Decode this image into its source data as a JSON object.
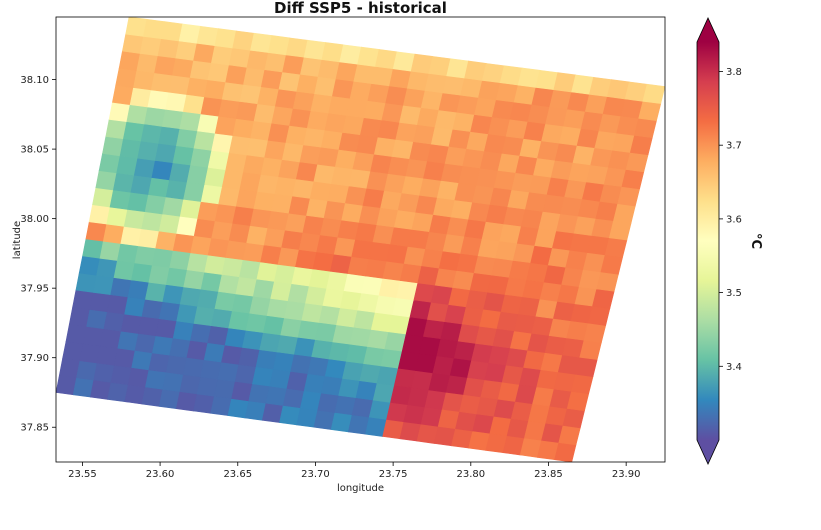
{
  "chart_data": {
    "type": "heatmap",
    "title": "Diff SSP5 - historical",
    "xlabel": "longitude",
    "ylabel": "latitude",
    "xlim": [
      23.533,
      23.925
    ],
    "ylim": [
      37.825,
      38.145
    ],
    "x_ticks": [
      "23.55",
      "23.60",
      "23.65",
      "23.70",
      "23.75",
      "23.80",
      "23.85",
      "23.90"
    ],
    "y_ticks": [
      "37.85",
      "37.90",
      "37.95",
      "38.00",
      "38.05",
      "38.10"
    ],
    "x_tick_values": [
      23.55,
      23.6,
      23.65,
      23.7,
      23.75,
      23.8,
      23.85,
      23.9
    ],
    "y_tick_values": [
      37.85,
      37.9,
      37.95,
      38.0,
      38.05,
      38.1
    ],
    "colorbar": {
      "label": "°C",
      "range": [
        3.3,
        3.84
      ],
      "ticks": [
        "3.4",
        "3.5",
        "3.6",
        "3.7",
        "3.8"
      ],
      "tick_values": [
        3.4,
        3.5,
        3.6,
        3.7,
        3.8
      ],
      "extend": "both",
      "colormap": "Spectral_r"
    },
    "grid": false,
    "field_description": {
      "domain_corners_lonlat": [
        [
          23.58,
          38.145
        ],
        [
          23.925,
          38.095
        ],
        [
          23.865,
          37.825
        ],
        [
          23.533,
          37.875
        ]
      ],
      "cells": [
        30,
        22
      ],
      "value_range": [
        3.31,
        3.83
      ],
      "low_values_region": "south-west coast and western pocket (~3.31-3.45)",
      "high_values_region": "south-east interior (~3.78-3.83)",
      "north_values": "~3.63-3.72"
    }
  }
}
